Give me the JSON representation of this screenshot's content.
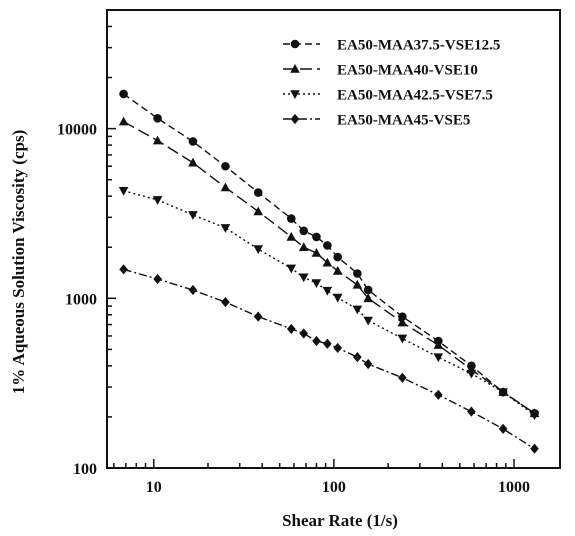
{
  "chart_data": {
    "type": "line",
    "xlabel": "Shear Rate (1/s)",
    "ylabel": "1% Aqueous Solution Viscosity (cps)",
    "x_scale": "log",
    "y_scale": "log",
    "xlim": [
      5.5,
      1800
    ],
    "ylim": [
      100,
      50000
    ],
    "x_ticks": [
      10,
      100,
      1000
    ],
    "x_tick_labels": [
      "10",
      "100",
      "1000"
    ],
    "y_ticks": [
      100,
      1000,
      10000
    ],
    "y_tick_labels": [
      "100",
      "1000",
      "10000"
    ],
    "grid": false,
    "legend_position": "top-right",
    "series": [
      {
        "name": "EA50-MAA37.5-VSE12.5",
        "marker": "circle",
        "dash": "dash",
        "x": [
          6.8,
          10.5,
          16.5,
          25,
          38,
          58,
          68,
          80,
          92,
          105,
          135,
          155,
          240,
          380,
          580,
          870,
          1300
        ],
        "y": [
          16000,
          11500,
          8400,
          6000,
          4200,
          2950,
          2500,
          2300,
          2050,
          1750,
          1400,
          1120,
          780,
          560,
          400,
          280,
          210
        ]
      },
      {
        "name": "EA50-MAA40-VSE10",
        "marker": "triangle-up",
        "dash": "longdash",
        "x": [
          6.8,
          10.5,
          16.5,
          25,
          38,
          58,
          68,
          80,
          92,
          105,
          135,
          155,
          240,
          380,
          580,
          870,
          1300
        ],
        "y": [
          11000,
          8500,
          6300,
          4500,
          3250,
          2300,
          2000,
          1850,
          1620,
          1450,
          1200,
          1000,
          720,
          530,
          380,
          280,
          210
        ]
      },
      {
        "name": "EA50-MAA42.5-VSE7.5",
        "marker": "triangle-down",
        "dash": "dot",
        "x": [
          6.8,
          10.5,
          16.5,
          25,
          38,
          58,
          68,
          80,
          92,
          105,
          135,
          155,
          240,
          380,
          580,
          870,
          1300
        ],
        "y": [
          4300,
          3800,
          3100,
          2600,
          1950,
          1500,
          1330,
          1230,
          1110,
          1010,
          860,
          740,
          580,
          450,
          360,
          280,
          205
        ]
      },
      {
        "name": "EA50-MAA45-VSE5",
        "marker": "diamond",
        "dash": "dashdot",
        "x": [
          6.8,
          10.5,
          16.5,
          25,
          38,
          58,
          68,
          80,
          92,
          105,
          135,
          155,
          240,
          380,
          580,
          870,
          1300
        ],
        "y": [
          1480,
          1300,
          1120,
          950,
          780,
          660,
          620,
          560,
          540,
          510,
          450,
          410,
          340,
          270,
          215,
          170,
          130
        ]
      }
    ]
  }
}
